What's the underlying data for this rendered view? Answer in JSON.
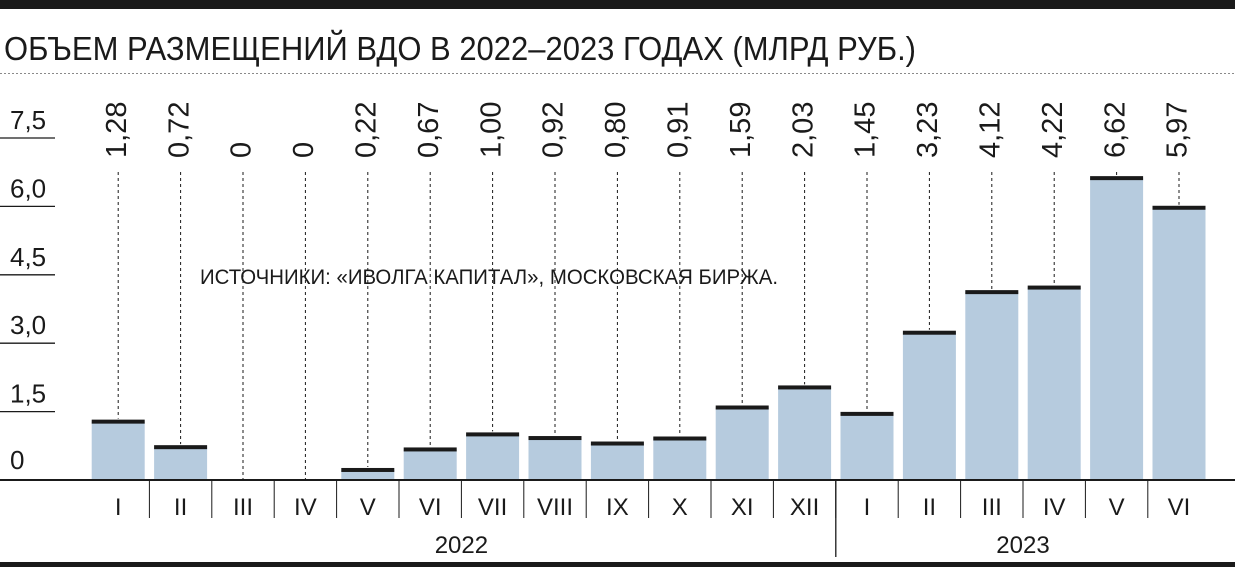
{
  "chart_data": {
    "type": "bar",
    "title": "ОБЪЕМ РАЗМЕЩЕНИЙ ВДО В 2022–2023 ГОДАХ (МЛРД РУБ.)",
    "source": "ИСТОЧНИКИ: «ИВОЛГА КАПИТАЛ», МОСКОВСКАЯ БИРЖА.",
    "categories": [
      "I",
      "II",
      "III",
      "IV",
      "V",
      "VI",
      "VII",
      "VIII",
      "IX",
      "X",
      "XI",
      "XII",
      "I",
      "II",
      "III",
      "IV",
      "V",
      "VI"
    ],
    "values": [
      1.28,
      0.72,
      0,
      0,
      0.22,
      0.67,
      1.0,
      0.92,
      0.8,
      0.91,
      1.59,
      2.03,
      1.45,
      3.23,
      4.12,
      4.22,
      6.62,
      5.97
    ],
    "value_labels": [
      "1,28",
      "0,72",
      "0",
      "0",
      "0,22",
      "0,67",
      "1,00",
      "0,92",
      "0,80",
      "0,91",
      "1,59",
      "2,03",
      "1,45",
      "3,23",
      "4,12",
      "4,22",
      "6,62",
      "5,97"
    ],
    "y_ticks": [
      "0",
      "1,5",
      "3,0",
      "4,5",
      "6,0",
      "7,5"
    ],
    "y_tick_values": [
      0,
      1.5,
      3.0,
      4.5,
      6.0,
      7.5
    ],
    "ylim": [
      0,
      7.5
    ],
    "years": [
      {
        "label": "2022",
        "count": 12
      },
      {
        "label": "2023",
        "count": 6
      }
    ],
    "colors": {
      "bar": "#b6cbde",
      "bar_cap": "#1a1a1a",
      "text": "#1a1a1a",
      "rule": "#1a1a1a"
    }
  }
}
